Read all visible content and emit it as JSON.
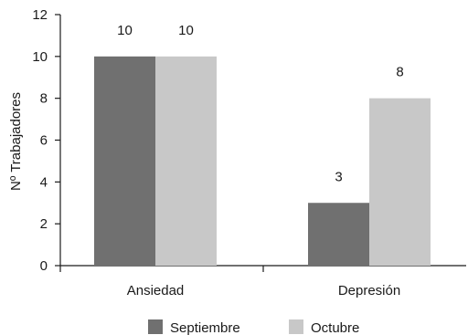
{
  "chart_data": {
    "type": "bar",
    "categories": [
      "Ansiedad",
      "Depresión"
    ],
    "series": [
      {
        "name": "Septiembre",
        "values": [
          10,
          3
        ],
        "color": "#707070"
      },
      {
        "name": "Octubre",
        "values": [
          10,
          8
        ],
        "color": "#c8c8c8"
      }
    ],
    "data_labels": [
      [
        "10",
        "3"
      ],
      [
        "10",
        "8"
      ]
    ],
    "ylabel": "Nº Trabajadores",
    "xlabel": "",
    "ylim": [
      0,
      12
    ],
    "yticks": [
      0,
      2,
      4,
      6,
      8,
      10,
      12
    ],
    "grid": false,
    "legend_position": "bottom"
  }
}
